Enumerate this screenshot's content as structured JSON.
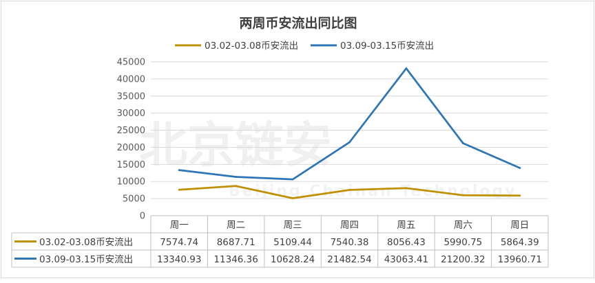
{
  "chart_data": {
    "type": "line",
    "title": "两周币安流出同比图",
    "categories": [
      "周一",
      "周二",
      "周三",
      "周四",
      "周五",
      "周六",
      "周日"
    ],
    "series": [
      {
        "name": "03.02-03.08币安流出",
        "color": "#bf9000",
        "values": [
          7574.74,
          8687.71,
          5109.44,
          7540.38,
          8056.43,
          5990.75,
          5864.39
        ]
      },
      {
        "name": "03.09-03.15币安流出",
        "color": "#2e75b6",
        "values": [
          13340.93,
          11346.36,
          10628.24,
          21482.54,
          43063.41,
          21200.32,
          13960.71
        ]
      }
    ],
    "ylim": [
      0,
      45000
    ],
    "yticks": [
      0,
      5000,
      10000,
      15000,
      20000,
      25000,
      30000,
      35000,
      40000,
      45000
    ],
    "grid": true,
    "legend_position": "top",
    "data_table": true
  },
  "watermark": {
    "text": "北京链安",
    "subtext": "Beijing Chainan Technology"
  }
}
